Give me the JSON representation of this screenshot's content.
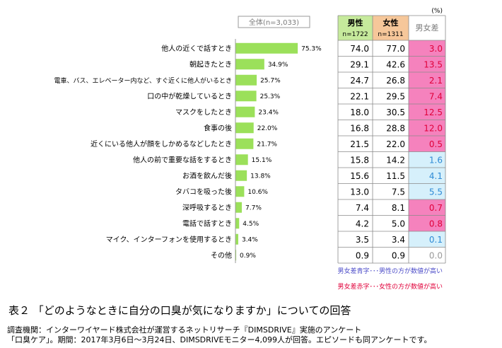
{
  "chart_data": {
    "type": "bar",
    "unit": "(%)",
    "overall_header": "全体(n=3,033)",
    "categories": [
      "他人の近くで話すとき",
      "朝起きたとき",
      "電車、バス、エレベーター内など、すぐ近くに他人がいるとき",
      "口の中が乾燥しているとき",
      "マスクをしたとき",
      "食事の後",
      "近くにいる他人が顔をしかめるなどしたとき",
      "他人の前で重要な話をするとき",
      "お酒を飲んだ後",
      "タバコを吸った後",
      "深呼吸するとき",
      "電話で話すとき",
      "マイク、インターフォンを使用するとき",
      "その他"
    ],
    "values": [
      75.3,
      34.9,
      25.7,
      25.3,
      23.4,
      22.0,
      21.7,
      15.1,
      13.8,
      10.6,
      7.7,
      4.5,
      3.4,
      0.9
    ],
    "value_labels": [
      "75.3%",
      "34.9%",
      "25.7%",
      "25.3%",
      "23.4%",
      "22.0%",
      "21.7%",
      "15.1%",
      "13.8%",
      "10.6%",
      "7.7%",
      "4.5%",
      "3.4%",
      "0.9%"
    ],
    "xlim": [
      0,
      100
    ],
    "bar_color": "#9be05a",
    "table": {
      "columns": [
        {
          "title": "男性",
          "sub": "n=1722",
          "color": "#c6ea9c"
        },
        {
          "title": "女性",
          "sub": "n=1311",
          "color": "#f6c79a"
        },
        {
          "title": "男女差",
          "sub": "",
          "color": "#ffffff"
        }
      ],
      "male": [
        "74.0",
        "29.1",
        "24.7",
        "22.1",
        "18.0",
        "16.8",
        "21.5",
        "15.8",
        "15.6",
        "13.0",
        "7.4",
        "4.2",
        "3.5",
        "0.9"
      ],
      "female": [
        "77.0",
        "42.6",
        "26.8",
        "29.5",
        "30.5",
        "28.8",
        "22.0",
        "14.2",
        "11.5",
        "7.5",
        "8.1",
        "5.0",
        "3.4",
        "0.9"
      ],
      "diff": [
        "3.0",
        "13.5",
        "2.1",
        "7.4",
        "12.5",
        "12.0",
        "0.5",
        "1.6",
        "4.1",
        "5.5",
        "0.7",
        "0.8",
        "0.1",
        "0.0"
      ],
      "diff_type": [
        "f",
        "f",
        "f",
        "f",
        "f",
        "f",
        "f",
        "m",
        "m",
        "m",
        "f",
        "f",
        "m",
        "n"
      ],
      "colors": {
        "f_bg": "#f582bd",
        "f_text": "#e0003a",
        "m_bg": "#d6f0fb",
        "m_text": "#2f8bd6",
        "n_bg": "#ffffff",
        "n_text": "#9a9a9a"
      }
    }
  },
  "legend": {
    "blue_note": "男女差青字･･･男性の方が数値が高い",
    "red_note": "男女差赤字･･･女性の方が数値が高い"
  },
  "caption": {
    "title": "表２ 「どのようなときに自分の口臭が気になりますか」についての回答",
    "note1": "調査機関：インターワイヤード株式会社が運営するネットリサーチ『DIMSDRIVE』実施のアンケート",
    "note2": "「口臭ケア」。期間：2017年3月6日～3月24日、DIMSDRIVEモニター4,099人が回答。エピソードも同アンケートです。"
  }
}
